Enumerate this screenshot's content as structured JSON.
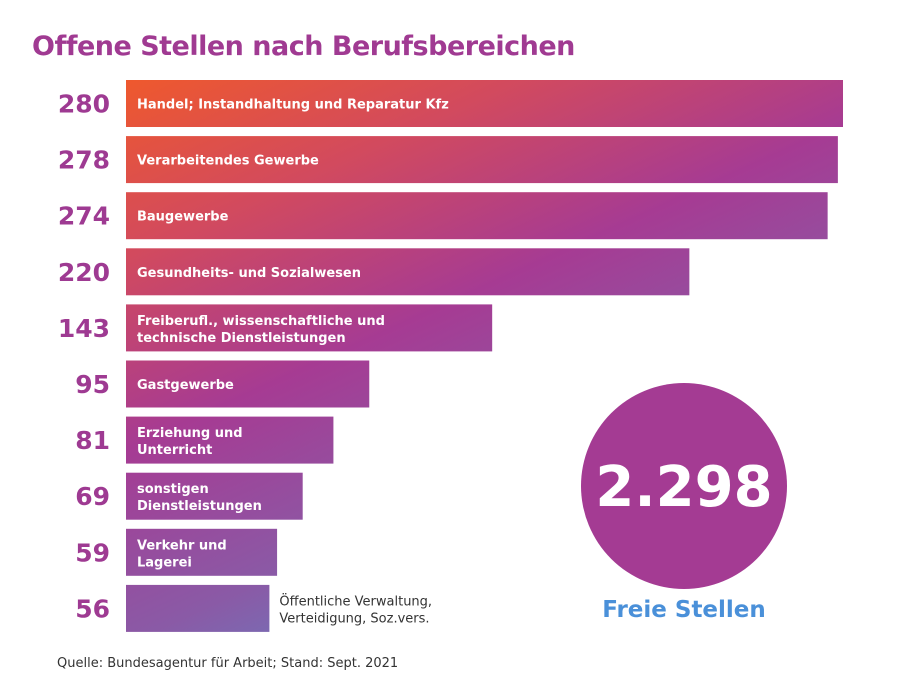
{
  "chart_data": {
    "type": "bar",
    "orientation": "horizontal",
    "title": "Offene Stellen nach Berufsbereichen",
    "categories": [
      [
        "Handel; Instandhaltung und Reparatur Kfz"
      ],
      [
        "Verarbeitendes Gewerbe"
      ],
      [
        "Baugewerbe"
      ],
      [
        "Gesundheits- und Sozialwesen"
      ],
      [
        "Freiberufl., wissenschaftliche und",
        "technische Dienstleistungen"
      ],
      [
        "Gastgewerbe"
      ],
      [
        "Erziehung und",
        "Unterricht"
      ],
      [
        "sonstigen",
        "Dienstleistungen"
      ],
      [
        "Verkehr und",
        "Lagerei"
      ],
      [
        "Öffentliche Verwaltung,",
        "Verteidigung, Soz.vers."
      ]
    ],
    "values": [
      280,
      278,
      274,
      220,
      143,
      95,
      81,
      69,
      59,
      56
    ],
    "value_labels": [
      "280",
      "278",
      "274",
      "220",
      "143",
      "95",
      "81",
      "69",
      "59",
      "56"
    ],
    "xlim": [
      0,
      280
    ],
    "grid": false,
    "colors": {
      "gradient_start": "#f15a29",
      "gradient_mid": "#a43b93",
      "gradient_end": "#5b8bcb",
      "value_text": "#9e3a92"
    }
  },
  "total": {
    "value": "2.298",
    "label": "Freie Stellen",
    "circle_color": "#a43b93",
    "label_color": "#4a90d9"
  },
  "source": "Quelle: Bundesagentur für Arbeit; Stand: Sept. 2021"
}
